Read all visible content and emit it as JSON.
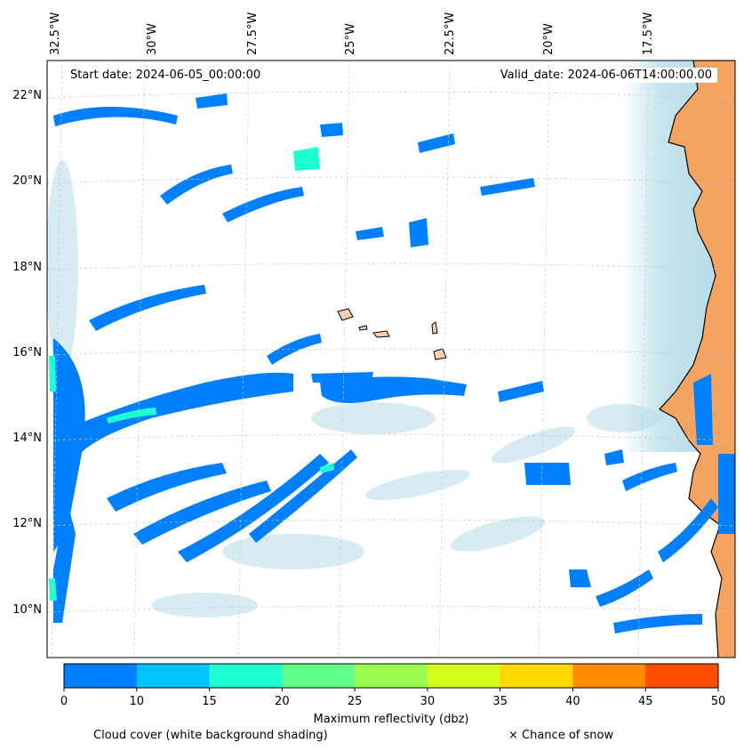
{
  "info": {
    "start_date": "Start date: 2024-06-05_00:00:00",
    "valid_date": "Valid_date: 2024-06-06T14:00:00.00"
  },
  "lon_labels": [
    "32.5°W",
    "30°W",
    "27.5°W",
    "25°W",
    "22.5°W",
    "20°W",
    "17.5°W"
  ],
  "lat_labels": [
    "22°N",
    "20°N",
    "18°N",
    "16°N",
    "14°N",
    "12°N",
    "10°N"
  ],
  "colorbar": {
    "title": "Maximum reflectivity (dbz)",
    "ticks": [
      "0",
      "10",
      "15",
      "20",
      "25",
      "30",
      "35",
      "40",
      "45",
      "50"
    ],
    "colors": [
      "#0080ff",
      "#00c3ff",
      "#1effd2",
      "#62ff8a",
      "#9cff4f",
      "#d4ff1b",
      "#ffd800",
      "#ff8b00",
      "#ff4d00"
    ]
  },
  "legend": {
    "cloud_cover": "Cloud cover (white background shading)",
    "snow": "× Chance of snow"
  },
  "colors": {
    "land": "#f4a460",
    "cloud": "#add8e6",
    "reflectivity_low": "#0080ff",
    "reflectivity_mid": "#1effd2"
  }
}
